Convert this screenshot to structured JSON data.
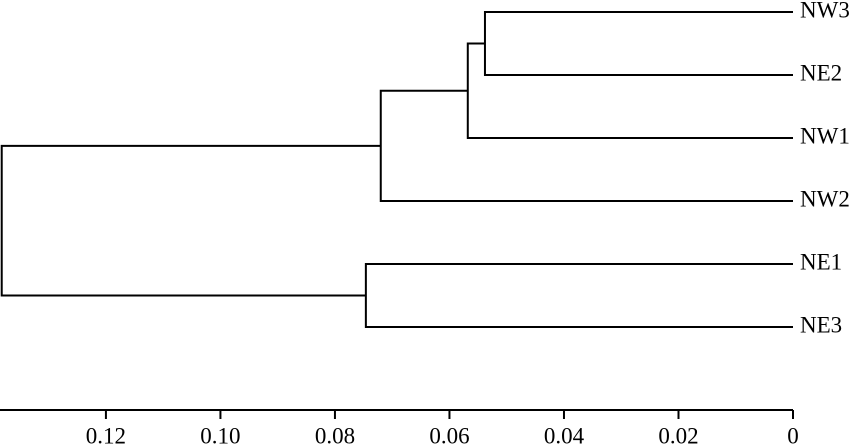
{
  "chart_data": {
    "type": "dendrogram",
    "leaves": [
      "NW3",
      "NE2",
      "NW1",
      "NW2",
      "NE1",
      "NE3"
    ],
    "merges": [
      {
        "left": 0,
        "right": 1,
        "height": 0.0538
      },
      {
        "left": 6,
        "right": 2,
        "height": 0.0568
      },
      {
        "left": 7,
        "right": 3,
        "height": 0.072
      },
      {
        "left": 4,
        "right": 5,
        "height": 0.0746
      },
      {
        "left": 8,
        "right": 9,
        "height": 0.1382
      }
    ],
    "xlim": [
      0.1385,
      0
    ],
    "xticks": [
      0.12,
      {
        "value": 0.1,
        "label": "0.10"
      },
      0.08,
      0.06,
      0.04,
      0.02,
      0
    ]
  }
}
